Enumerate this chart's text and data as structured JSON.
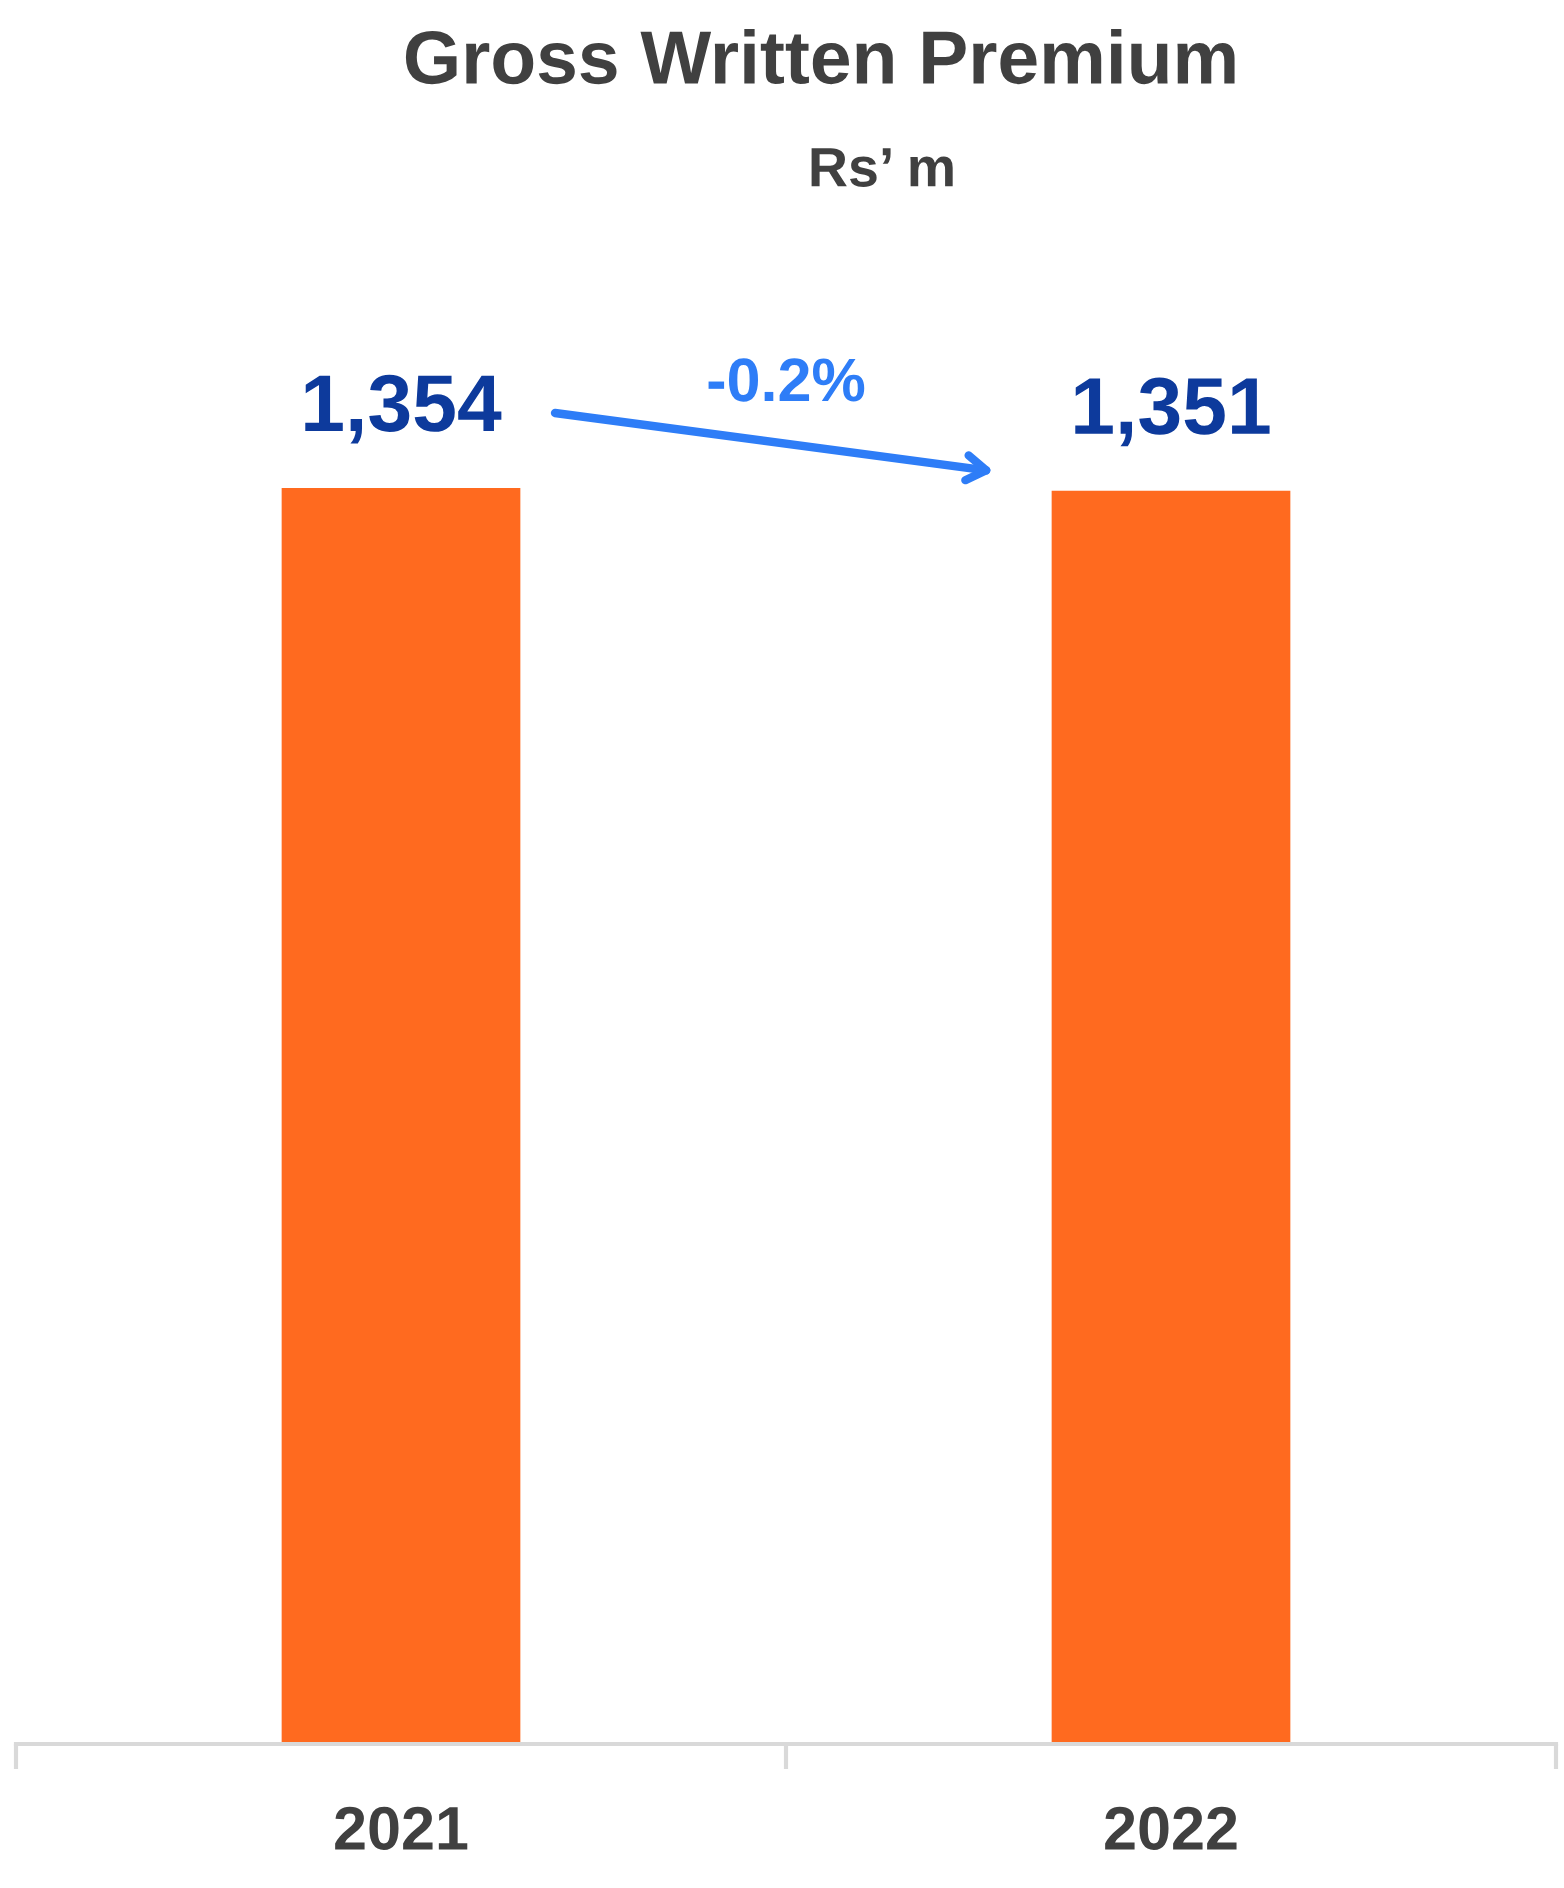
{
  "chart_data": {
    "type": "bar",
    "title": "Gross Written Premium",
    "subtitle": "Rs’ m",
    "categories": [
      "2021",
      "2022"
    ],
    "values": [
      1354,
      1351
    ],
    "color": "#ff6a1f",
    "value_labels": [
      "1,354",
      "1,351"
    ],
    "annotations": [
      "-0.2%"
    ],
    "tick_labels": "x"
  }
}
